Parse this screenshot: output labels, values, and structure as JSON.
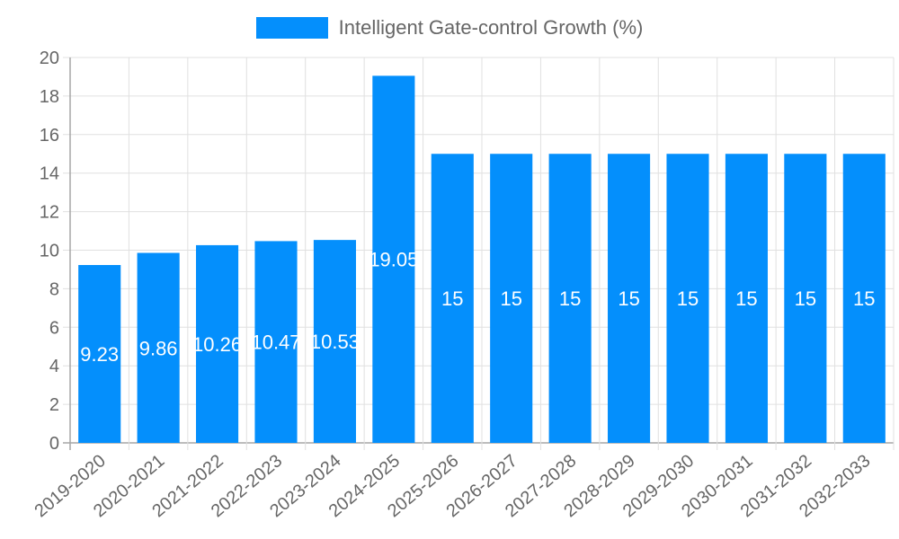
{
  "chart_data": {
    "type": "bar",
    "title": "",
    "xlabel": "",
    "ylabel": "",
    "ylim": [
      0,
      20
    ],
    "yticks": [
      0,
      2,
      4,
      6,
      8,
      10,
      12,
      14,
      16,
      18,
      20
    ],
    "grid": true,
    "legend_position": "top",
    "categories": [
      "2019-2020",
      "2020-2021",
      "2021-2022",
      "2022-2023",
      "2023-2024",
      "2024-2025",
      "2025-2026",
      "2026-2027",
      "2027-2028",
      "2028-2029",
      "2029-2030",
      "2030-2031",
      "2031-2032",
      "2032-2033"
    ],
    "series": [
      {
        "name": "Intelligent Gate-control Growth (%)",
        "color": "#048ffc",
        "values": [
          9.23,
          9.86,
          10.26,
          10.47,
          10.53,
          19.05,
          15,
          15,
          15,
          15,
          15,
          15,
          15,
          15
        ],
        "data_labels": [
          "9.23",
          "9.86",
          "10.26",
          "10.47",
          "10.53",
          "19.05",
          "15",
          "15",
          "15",
          "15",
          "15",
          "15",
          "15",
          "15"
        ]
      }
    ]
  },
  "legend": {
    "label": "Intelligent Gate-control Growth (%)",
    "color": "#048ffc"
  },
  "colors": {
    "bar": "#048ffc",
    "grid": "#e0e0e0",
    "axis": "#a6a6a6",
    "tick_text": "#666666",
    "data_label": "#ffffff"
  }
}
